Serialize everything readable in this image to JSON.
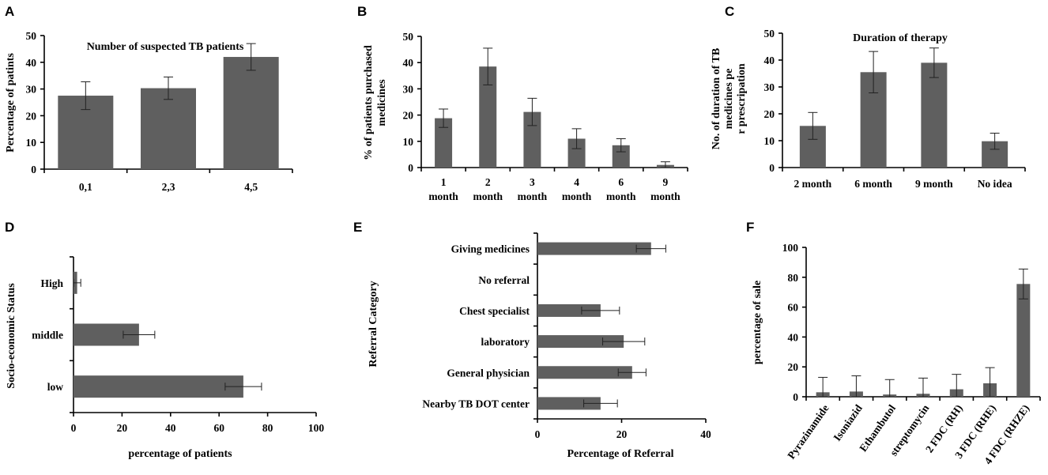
{
  "chart_data": [
    {
      "panel": "A",
      "type": "bar",
      "orientation": "vertical",
      "title": "Number of suspected TB patients",
      "xlabel": "",
      "ylabel": "Percentage of patints",
      "ylim": [
        0,
        50
      ],
      "yticks": [
        0,
        10,
        20,
        30,
        40,
        50
      ],
      "categories": [
        "0,1",
        "2,3",
        "4,5"
      ],
      "values": [
        27.5,
        30.3,
        42
      ],
      "errors": [
        5.2,
        4.2,
        5
      ]
    },
    {
      "panel": "B",
      "type": "bar",
      "orientation": "vertical",
      "title": "",
      "xlabel": "",
      "ylabel": "% of patients purchased medicines",
      "ylim": [
        0,
        50
      ],
      "yticks": [
        0,
        10,
        20,
        30,
        40,
        50
      ],
      "categories": [
        "1 month",
        "2 month",
        "3 month",
        "4 month",
        "6 month",
        "9 month"
      ],
      "values": [
        18.8,
        38.5,
        21.2,
        11,
        8.5,
        1
      ],
      "errors": [
        3.5,
        7,
        5.2,
        3.8,
        2.5,
        1.2
      ]
    },
    {
      "panel": "C",
      "type": "bar",
      "orientation": "vertical",
      "title": "Duration of therapy",
      "xlabel": "",
      "ylabel": "No. of duration of TB medicines per prescripation",
      "ylim": [
        0,
        50
      ],
      "yticks": [
        0,
        10,
        20,
        30,
        40,
        50
      ],
      "categories": [
        "2 month",
        "6 month",
        "9 month",
        "No idea"
      ],
      "values": [
        15.5,
        35.5,
        39,
        9.8
      ],
      "errors": [
        5,
        7.7,
        5.5,
        3
      ]
    },
    {
      "panel": "D",
      "type": "bar",
      "orientation": "horizontal",
      "title": "",
      "xlabel": "percentage of patients",
      "ylabel": "Socio-economic Status",
      "xlim": [
        0,
        100
      ],
      "xticks": [
        0,
        20,
        40,
        60,
        80,
        100
      ],
      "categories": [
        "low",
        "middle",
        "High"
      ],
      "values": [
        70,
        27,
        1.5
      ],
      "errors": [
        7.5,
        6.5,
        1.5
      ]
    },
    {
      "panel": "E",
      "type": "bar",
      "orientation": "horizontal",
      "title": "",
      "xlabel": "Percentage of Referral",
      "ylabel": "Referral Category",
      "xlim": [
        0,
        40
      ],
      "xticks": [
        0,
        20,
        40
      ],
      "categories": [
        "Nearby  TB DOT center",
        "General physician",
        "laboratory",
        "Chest specialist",
        "No referral",
        "Giving medicines"
      ],
      "values": [
        15,
        22.5,
        20.5,
        15,
        0,
        27
      ],
      "errors": [
        4,
        3.3,
        5,
        4.5,
        0,
        3.5
      ]
    },
    {
      "panel": "F",
      "type": "bar",
      "orientation": "vertical",
      "title": "",
      "xlabel": "",
      "ylabel": "percentage of sale",
      "ylim": [
        0,
        100
      ],
      "yticks": [
        0,
        20,
        40,
        60,
        80,
        100
      ],
      "categories": [
        "Pyrazinamide",
        "Isoniazid",
        "Ethambutol",
        "streptomycin",
        "2 FDC  (RH)",
        "3 FDC (RHE)",
        "4 FDC (RHZE)"
      ],
      "values": [
        3,
        3.5,
        1.5,
        2,
        5,
        9,
        75.5
      ],
      "errors": [
        10,
        10.5,
        10,
        10.5,
        10,
        10.5,
        10
      ]
    }
  ]
}
